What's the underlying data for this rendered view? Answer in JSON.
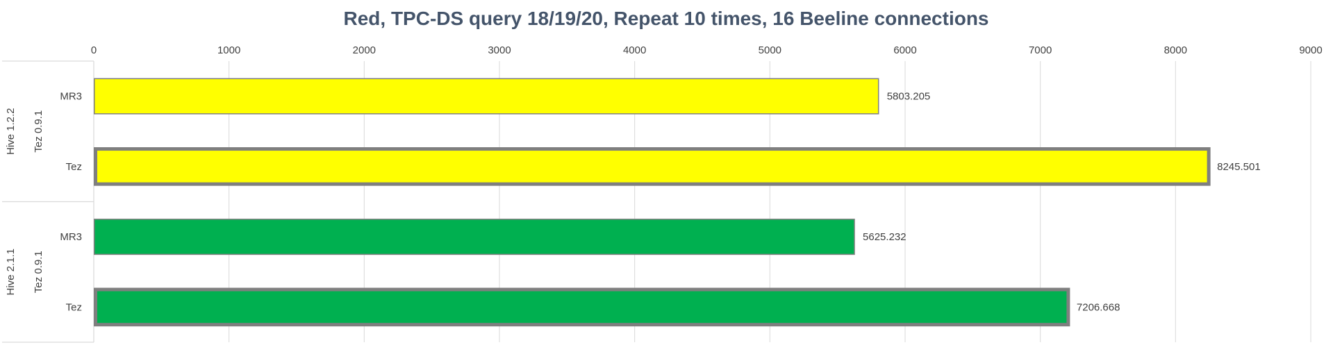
{
  "chart_data": {
    "type": "bar",
    "orientation": "horizontal",
    "title": "Red, TPC-DS query 18/19/20, Repeat 10 times, 16 Beeline connections",
    "xlim": [
      0,
      9000
    ],
    "ticks": [
      0,
      1000,
      2000,
      3000,
      4000,
      5000,
      6000,
      7000,
      8000,
      9000
    ],
    "grid": true,
    "legend": "none",
    "groups": [
      {
        "label": "Hive 1.2.2",
        "sublabel": "Tez 0.9.1",
        "color": "#ffff00",
        "bars": [
          {
            "category": "MR3",
            "value": 5803.205,
            "emphasized": false
          },
          {
            "category": "Tez",
            "value": 8245.501,
            "emphasized": true
          }
        ]
      },
      {
        "label": "Hive 2.1.1",
        "sublabel": "Tez 0.9.1",
        "color": "#00b050",
        "bars": [
          {
            "category": "MR3",
            "value": 5625.232,
            "emphasized": false
          },
          {
            "category": "Tez",
            "value": 7206.668,
            "emphasized": true
          }
        ]
      }
    ],
    "border_color": "#7f7f7f"
  }
}
